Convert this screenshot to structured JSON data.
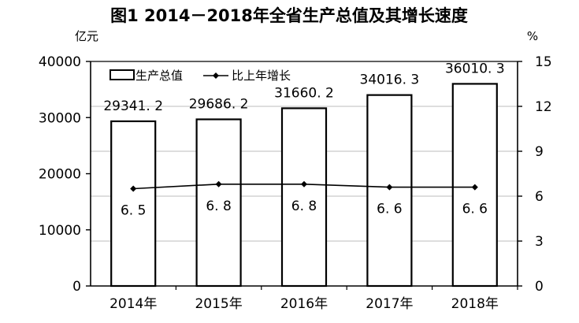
{
  "chart_data": {
    "type": "bar",
    "title": "图1 2014－2018年全省生产总值及其增长速度",
    "left_unit": "亿元",
    "right_unit": "%",
    "categories": [
      "2014年",
      "2015年",
      "2016年",
      "2017年",
      "2018年"
    ],
    "bar_series": {
      "name": "生产总值",
      "values": [
        29341.2,
        29686.2,
        31660.2,
        34016.3,
        36010.3
      ],
      "labels": [
        "29341. 2",
        "29686. 2",
        "31660. 2",
        "34016. 3",
        "36010. 3"
      ],
      "fill": "#ffffff",
      "stroke": "#000000"
    },
    "line_series": {
      "name": "比上年增长",
      "values": [
        6.5,
        6.8,
        6.8,
        6.6,
        6.6
      ],
      "labels": [
        "6. 5",
        "6. 8",
        "6. 8",
        "6. 6",
        "6. 6"
      ],
      "stroke": "#000000"
    },
    "y_left": {
      "min": 0,
      "max": 40000,
      "ticks": [
        0,
        10000,
        20000,
        30000,
        40000
      ]
    },
    "y_right": {
      "min": 0,
      "max": 15,
      "ticks": [
        0,
        3,
        6,
        9,
        12,
        15
      ]
    },
    "grid": true,
    "grid_color": "#bdbdbd",
    "legend_position": "top-left"
  }
}
